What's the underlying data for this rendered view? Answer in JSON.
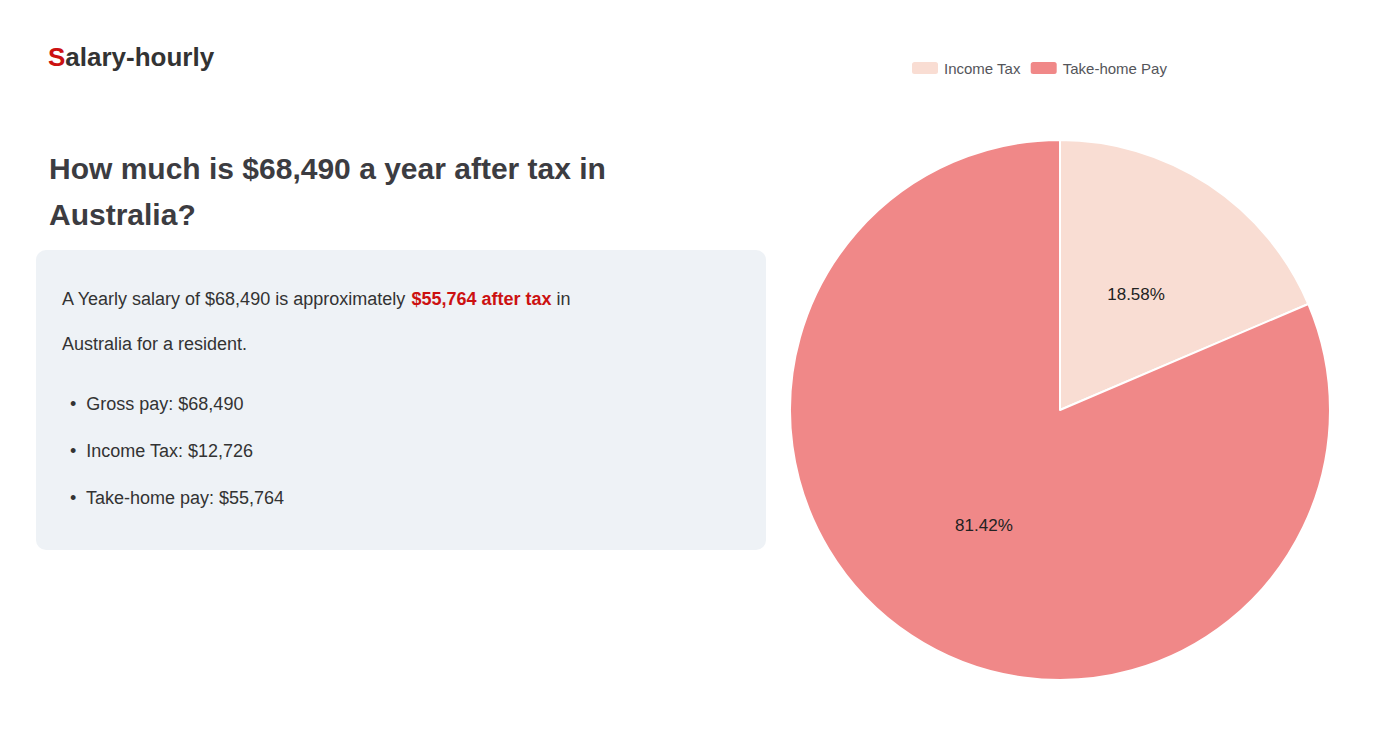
{
  "chart_data": {
    "type": "pie",
    "title": "How much is $68,490 a year after tax in\nAustralia?",
    "categories": [
      "Income Tax",
      "Take-home Pay"
    ],
    "values": [
      18.58,
      81.42
    ],
    "value_labels": [
      "18.58%",
      "81.42%"
    ],
    "colors": [
      "#f9ddd3",
      "#f08888"
    ],
    "data_labels": true,
    "legend": "top",
    "annotations": [
      [
        {
          "text": "S",
          "color": "#cc1111"
        },
        {
          "text": "alary-hourly"
        }
      ],
      [
        {
          "text": "A Yearly salary of $68,490 is approximately "
        },
        {
          "text": "$55,764 after tax",
          "color": "#cc1111"
        },
        {
          "text": " in"
        }
      ],
      [
        {
          "text": "Australia for a resident."
        }
      ],
      [
        {
          "text": "•  Gross pay: $68,490"
        }
      ],
      [
        {
          "text": "•  Income Tax: $12,726"
        }
      ],
      [
        {
          "text": "•  Take-home pay: $55,764"
        }
      ]
    ]
  }
}
